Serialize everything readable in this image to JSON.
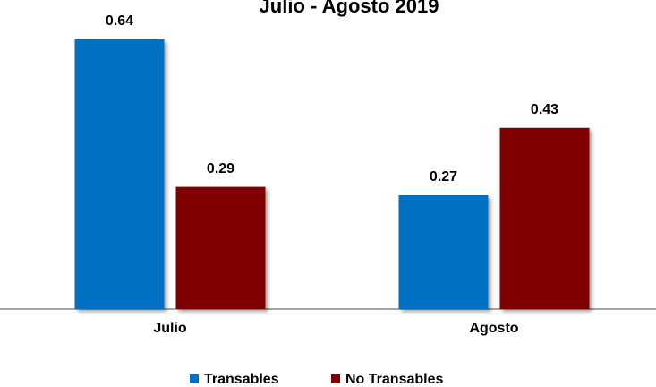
{
  "chart_data": {
    "type": "bar",
    "title": "Julio - Agosto 2019",
    "categories": [
      "Julio",
      "Agosto"
    ],
    "series": [
      {
        "name": "Transables",
        "color": "#0070c0",
        "values": [
          0.64,
          0.27
        ]
      },
      {
        "name": "No Transables",
        "color": "#7f0000",
        "values": [
          0.29,
          0.43
        ]
      }
    ],
    "legend": "bottom"
  }
}
